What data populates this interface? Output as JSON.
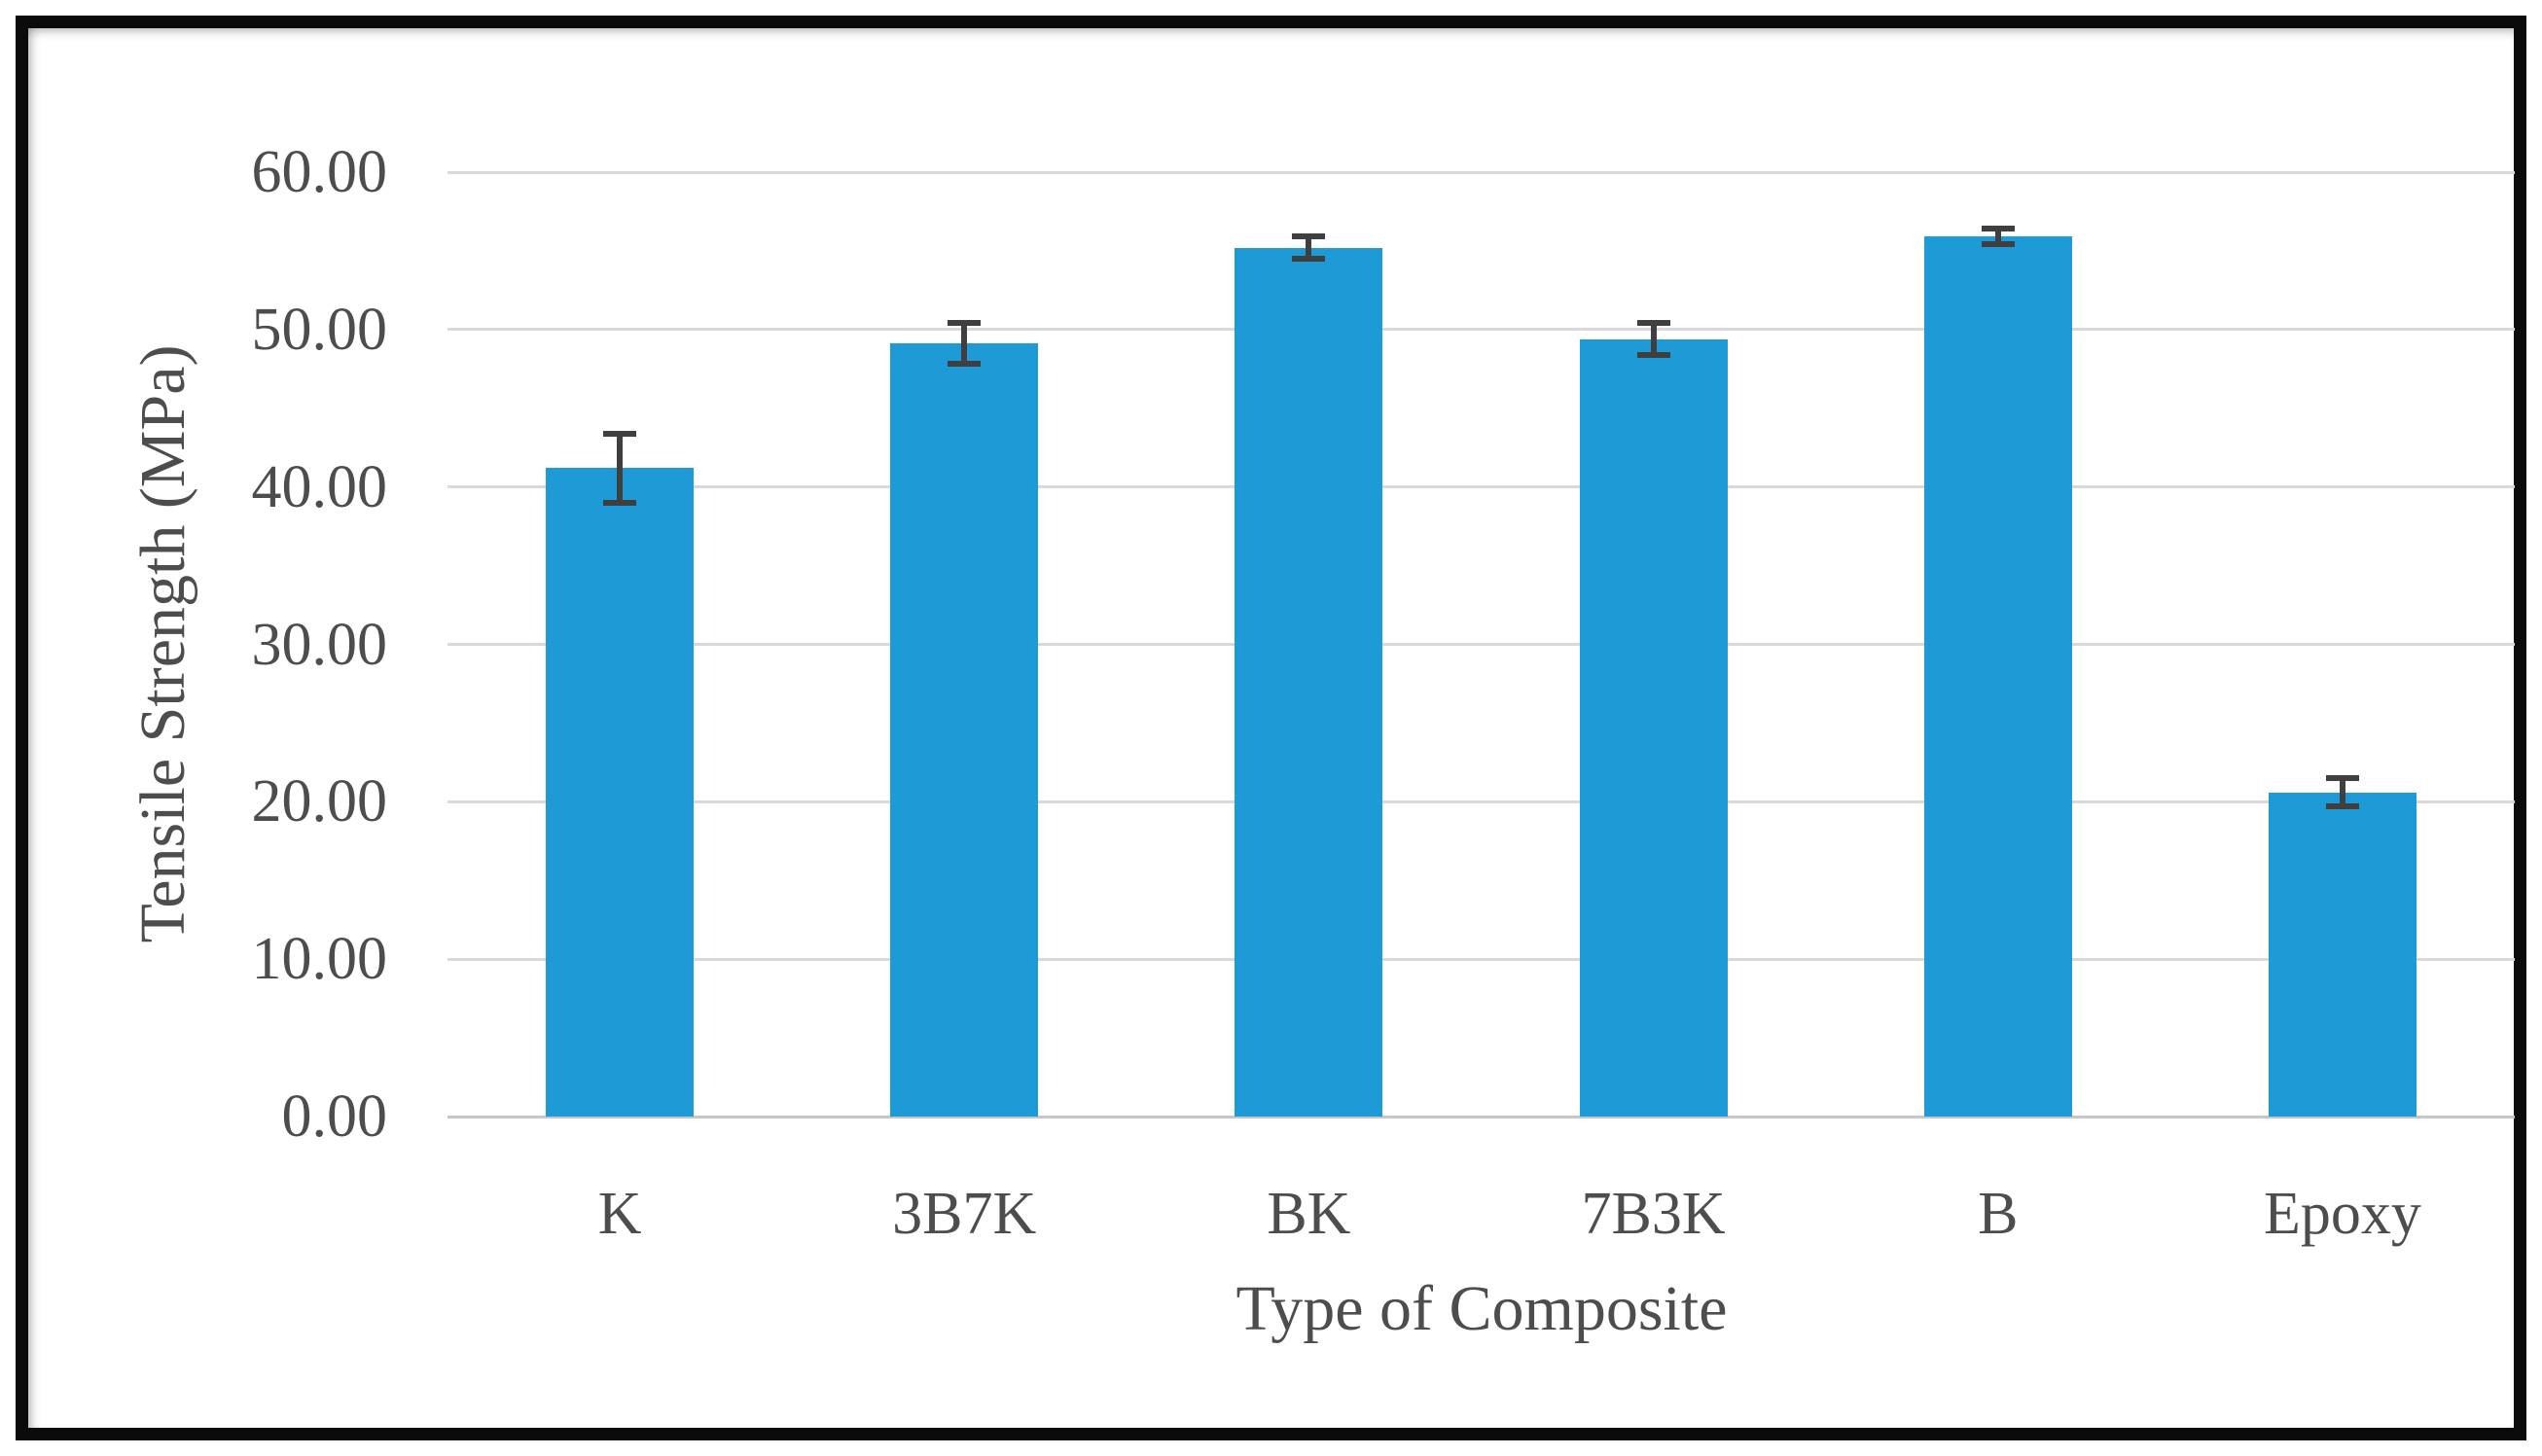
{
  "chart_data": {
    "type": "bar",
    "title": "",
    "xlabel": "Type of Composite",
    "ylabel": "Tensile Strength (MPa)",
    "categories": [
      "K",
      "3B7K",
      "BK",
      "7B3K",
      "B",
      "Epoxy"
    ],
    "values": [
      41.2,
      49.1,
      55.2,
      49.4,
      55.9,
      20.6
    ],
    "error_bars": [
      2.2,
      1.3,
      0.7,
      1.0,
      0.5,
      0.9
    ],
    "ylim": [
      0,
      60
    ],
    "ytick_step": 10,
    "y_ticks": [
      {
        "value": 0,
        "label": "0.00"
      },
      {
        "value": 10,
        "label": "10.00"
      },
      {
        "value": 20,
        "label": "20.00"
      },
      {
        "value": 30,
        "label": "30.00"
      },
      {
        "value": 40,
        "label": "40.00"
      },
      {
        "value": 50,
        "label": "50.00"
      },
      {
        "value": 60,
        "label": "60.00"
      }
    ],
    "grid": true,
    "legend": "none",
    "colors": {
      "bar": "#1e9ad6",
      "error_bar": "#3f3f3f",
      "gridline": "#d9d9d9",
      "axis_line": "#c6c6c6",
      "text": "#4d4d4d",
      "frame_border": "#0a0a0a",
      "background": "#ffffff"
    }
  }
}
